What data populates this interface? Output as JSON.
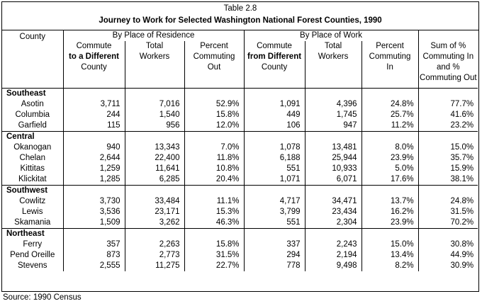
{
  "title": {
    "line1": "Table 2.8",
    "line2": "Journey to Work for Selected Washington National Forest Counties, 1990"
  },
  "headers": {
    "county": "County",
    "group_residence": "By Place of Residence",
    "group_work": "By Place of Work",
    "res_commute": [
      "Commute",
      "to a Different",
      "County"
    ],
    "res_total": [
      "Total",
      "Workers"
    ],
    "res_percent": [
      "Percent",
      "Commuting",
      "Out"
    ],
    "work_commute": [
      "Commute",
      "from Different",
      "County"
    ],
    "work_total": [
      "Total",
      "Workers"
    ],
    "work_percent": [
      "Percent",
      "Commuting",
      "In"
    ],
    "sum": [
      "Sum of %",
      "Commuting In",
      "and %",
      "Commuting Out"
    ]
  },
  "regions": [
    {
      "name": "Southeast",
      "rows": [
        [
          "Asotin",
          "3,711",
          "7,016",
          "52.9%",
          "1,091",
          "4,396",
          "24.8%",
          "77.7%"
        ],
        [
          "Columbia",
          "244",
          "1,540",
          "15.8%",
          "449",
          "1,745",
          "25.7%",
          "41.6%"
        ],
        [
          "Garfield",
          "115",
          "956",
          "12.0%",
          "106",
          "947",
          "11.2%",
          "23.2%"
        ]
      ]
    },
    {
      "name": "Central",
      "rows": [
        [
          "Okanogan",
          "940",
          "13,343",
          "7.0%",
          "1,078",
          "13,481",
          "8.0%",
          "15.0%"
        ],
        [
          "Chelan",
          "2,644",
          "22,400",
          "11.8%",
          "6,188",
          "25,944",
          "23.9%",
          "35.7%"
        ],
        [
          "Kittitas",
          "1,259",
          "11,641",
          "10.8%",
          "551",
          "10,933",
          "5.0%",
          "15.9%"
        ],
        [
          "Klickitat",
          "1,285",
          "6,285",
          "20.4%",
          "1,071",
          "6,071",
          "17.6%",
          "38.1%"
        ]
      ]
    },
    {
      "name": "Southwest",
      "rows": [
        [
          "Cowlitz",
          "3,730",
          "33,484",
          "11.1%",
          "4,717",
          "34,471",
          "13.7%",
          "24.8%"
        ],
        [
          "Lewis",
          "3,536",
          "23,171",
          "15.3%",
          "3,799",
          "23,434",
          "16.2%",
          "31.5%"
        ],
        [
          "Skamania",
          "1,509",
          "3,262",
          "46.3%",
          "551",
          "2,304",
          "23.9%",
          "70.2%"
        ]
      ]
    },
    {
      "name": "Northeast",
      "rows": [
        [
          "Ferry",
          "357",
          "2,263",
          "15.8%",
          "337",
          "2,243",
          "15.0%",
          "30.8%"
        ],
        [
          "Pend Oreille",
          "873",
          "2,773",
          "31.5%",
          "294",
          "2,194",
          "13.4%",
          "44.9%"
        ],
        [
          "Stevens",
          "2,555",
          "11,275",
          "22.7%",
          "778",
          "9,498",
          "8.2%",
          "30.9%"
        ]
      ]
    }
  ],
  "source": "Source: 1990 Census"
}
